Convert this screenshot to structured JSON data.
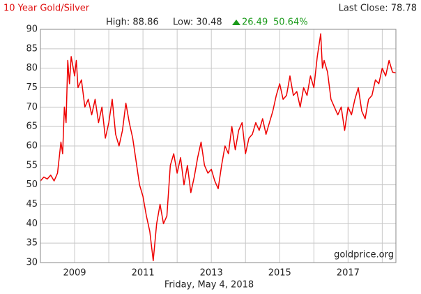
{
  "chart_data": {
    "type": "line",
    "title": "10 Year Gold/Silver",
    "last_close": "Last Close: 78.78",
    "high": "High: 88.86",
    "low": "Low: 30.48",
    "change": "26.49",
    "change_pct": "50.64%",
    "date_label": "Friday, May 4, 2018",
    "source": "goldprice.org",
    "color": "#ee0000",
    "xlim": [
      2008.0,
      2018.4
    ],
    "xticks": [
      2009,
      2011,
      2013,
      2015,
      2017
    ],
    "x_minor_ticks": [
      2010,
      2012,
      2014,
      2016,
      2018
    ],
    "ylim": [
      30,
      90
    ],
    "yticks": [
      30,
      35,
      40,
      45,
      50,
      55,
      60,
      65,
      70,
      75,
      80,
      85,
      90
    ],
    "grid": true,
    "x": [
      2008.0,
      2008.1,
      2008.2,
      2008.3,
      2008.4,
      2008.5,
      2008.6,
      2008.65,
      2008.7,
      2008.75,
      2008.8,
      2008.85,
      2008.9,
      2009.0,
      2009.05,
      2009.1,
      2009.2,
      2009.3,
      2009.4,
      2009.5,
      2009.6,
      2009.7,
      2009.8,
      2009.9,
      2010.0,
      2010.1,
      2010.2,
      2010.3,
      2010.4,
      2010.5,
      2010.6,
      2010.7,
      2010.8,
      2010.9,
      2011.0,
      2011.1,
      2011.2,
      2011.3,
      2011.4,
      2011.5,
      2011.6,
      2011.7,
      2011.8,
      2011.9,
      2012.0,
      2012.1,
      2012.2,
      2012.3,
      2012.4,
      2012.5,
      2012.6,
      2012.7,
      2012.8,
      2012.9,
      2013.0,
      2013.1,
      2013.2,
      2013.3,
      2013.4,
      2013.5,
      2013.6,
      2013.7,
      2013.8,
      2013.9,
      2014.0,
      2014.1,
      2014.2,
      2014.3,
      2014.4,
      2014.5,
      2014.6,
      2014.7,
      2014.8,
      2014.9,
      2015.0,
      2015.1,
      2015.2,
      2015.3,
      2015.4,
      2015.5,
      2015.6,
      2015.7,
      2015.8,
      2015.9,
      2016.0,
      2016.1,
      2016.2,
      2016.25,
      2016.3,
      2016.4,
      2016.5,
      2016.6,
      2016.7,
      2016.8,
      2016.9,
      2017.0,
      2017.1,
      2017.2,
      2017.3,
      2017.4,
      2017.5,
      2017.6,
      2017.7,
      2017.8,
      2017.9,
      2018.0,
      2018.1,
      2018.2,
      2018.3,
      2018.4
    ],
    "values": [
      51,
      52,
      51.5,
      52.5,
      51,
      53,
      61,
      58,
      70,
      66,
      82,
      76,
      83,
      78,
      82,
      75,
      77,
      70,
      72,
      68,
      72,
      66,
      70,
      62,
      66,
      72,
      63,
      60,
      64,
      71,
      66,
      62,
      56,
      50,
      47,
      42,
      38,
      30.48,
      40,
      45,
      40,
      42,
      55,
      58,
      53,
      57,
      50,
      55,
      48,
      52,
      57,
      61,
      55,
      53,
      54,
      51,
      49,
      55,
      60,
      58,
      65,
      59,
      64,
      66,
      58,
      62,
      63,
      66,
      64,
      67,
      63,
      66,
      69,
      73,
      76,
      72,
      73,
      78,
      73,
      74,
      70,
      75,
      73,
      78,
      75,
      83,
      88.86,
      80,
      82,
      79,
      72,
      70,
      68,
      70,
      64,
      70,
      68,
      72,
      75,
      69,
      67,
      72,
      73,
      77,
      76,
      80,
      78,
      82,
      79,
      78.78
    ]
  }
}
